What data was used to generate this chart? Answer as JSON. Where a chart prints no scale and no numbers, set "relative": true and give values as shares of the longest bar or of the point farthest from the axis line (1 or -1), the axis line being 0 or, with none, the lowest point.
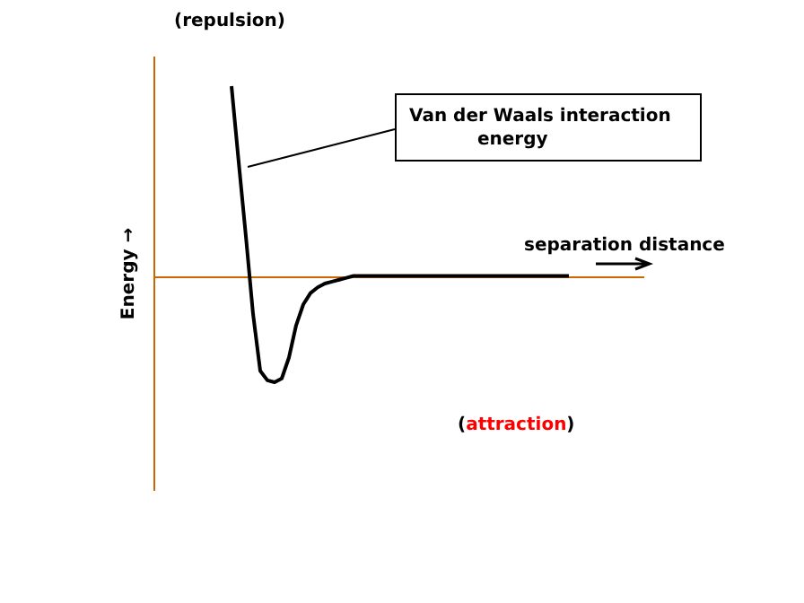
{
  "chart_data": {
    "type": "line",
    "relative": true,
    "ylabel": "Energy →",
    "xlabel": "separation distance",
    "marker": "none",
    "ref_lines": [
      {
        "axis": "y",
        "value": 0,
        "color": "#cc6600"
      }
    ],
    "annotations": [
      "(repulsion)",
      "(attraction)"
    ],
    "categories": [
      null,
      null,
      null,
      null,
      null,
      null,
      null,
      null,
      null,
      null,
      null,
      null,
      null,
      null,
      null,
      null,
      null,
      null,
      null,
      null,
      null,
      null,
      null,
      null,
      null,
      null,
      null,
      null,
      null,
      null,
      null,
      null,
      null,
      null,
      null,
      null,
      null,
      null,
      null,
      null,
      null,
      null,
      null,
      null,
      null,
      null,
      null,
      null
    ],
    "series": [
      {
        "name": "Van der Waals interaction energy",
        "color": "#000000",
        "values": [
          1.0,
          0.6,
          0.21,
          -0.2,
          -0.5,
          -0.55,
          -0.56,
          -0.54,
          -0.43,
          -0.26,
          -0.15,
          -0.09,
          -0.06,
          -0.04,
          -0.03,
          -0.02,
          -0.01,
          0,
          0,
          0,
          0,
          0,
          0,
          0,
          0,
          0,
          0,
          0,
          0,
          0,
          0,
          0,
          0,
          0,
          0,
          0,
          0,
          0,
          0,
          0,
          0,
          0,
          0,
          0,
          0,
          0,
          0,
          0
        ]
      }
    ]
  }
}
